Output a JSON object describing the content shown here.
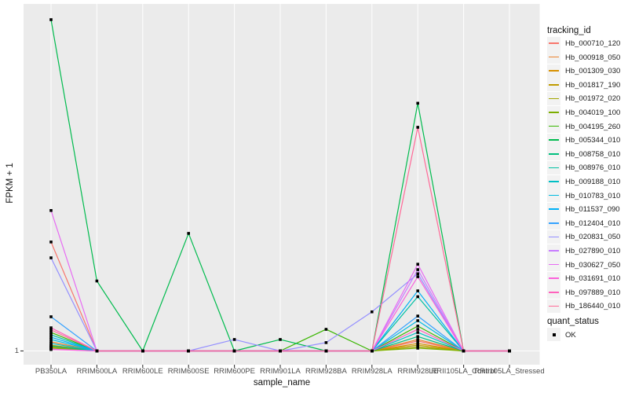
{
  "figure": {
    "background": "#FFFFFF",
    "panel_bg": "#EBEBEB",
    "gridline_color": "#FFFFFF",
    "tick_color": "#333333",
    "axis_text_color": "#4D4D4D",
    "point_color": "#000000"
  },
  "axes": {
    "x_title": "sample_name",
    "y_title": "FPKM + 1",
    "y_tick_label": "1"
  },
  "legend": {
    "tracking_title": "tracking_id",
    "quant_title": "quant_status",
    "quant_ok_label": "OK",
    "key_bg": "#F2F2F2",
    "marker": "black-square"
  },
  "chart_data": {
    "type": "line",
    "title": "",
    "xlabel": "sample_name",
    "ylabel": "FPKM + 1",
    "yscale": "log10",
    "y_ticks_labeled": [
      1
    ],
    "ylim_approx": [
      1,
      1400
    ],
    "grid": "white major gridlines on gray panel",
    "legend_position": "right",
    "point_marker": "small black square (quant_status = OK) at every data point",
    "categories": [
      "PB350LA",
      "RRIM600LA",
      "RRIM600LE",
      "RRIM600SE",
      "RRIM600PE",
      "RRIM901LA",
      "RRIM928BA",
      "RRIM928LA",
      "RRIM928LE",
      "RRII105LA_Control",
      "RRII105LA_Stressed"
    ],
    "values_unit": "FPKM + 1 (estimated from log axis; baseline = 1)",
    "series": [
      {
        "name": "Hb_000710_120",
        "color": "#F8766D",
        "values": [
          9.7,
          1,
          1,
          1,
          1,
          1,
          1,
          1,
          1.23,
          1,
          1
        ]
      },
      {
        "name": "Hb_000918_050",
        "color": "#EA8331",
        "values": [
          1.21,
          1,
          1,
          1,
          1,
          1,
          1,
          1,
          1.27,
          1,
          1
        ]
      },
      {
        "name": "Hb_001309_030",
        "color": "#D89000",
        "values": [
          1.13,
          1,
          1,
          1,
          1,
          1,
          1,
          1,
          1.17,
          1,
          1
        ]
      },
      {
        "name": "Hb_001817_190",
        "color": "#C09B00",
        "values": [
          1.09,
          1,
          1,
          1,
          1,
          1,
          1,
          1,
          1.13,
          1,
          1
        ]
      },
      {
        "name": "Hb_001972_020",
        "color": "#A3A500",
        "values": [
          1.08,
          1,
          1,
          1,
          1,
          1,
          1,
          1,
          1.09,
          1,
          1
        ]
      },
      {
        "name": "Hb_004019_100",
        "color": "#7CAE00",
        "values": [
          1.06,
          1,
          1,
          1,
          1,
          1,
          1,
          1,
          1.06,
          1,
          1
        ]
      },
      {
        "name": "Hb_004195_260",
        "color": "#39B600",
        "values": [
          1.47,
          1,
          1,
          1,
          1,
          1,
          1.57,
          1,
          1.68,
          1,
          1
        ]
      },
      {
        "name": "Hb_005344_010",
        "color": "#00BB4E",
        "values": [
          1000,
          4.3,
          1,
          11.6,
          1,
          1.27,
          1,
          1,
          175,
          1,
          1
        ]
      },
      {
        "name": "Hb_008758_010",
        "color": "#00BF7D",
        "values": [
          1.11,
          1,
          1,
          1,
          1,
          1,
          1,
          1,
          1.35,
          1,
          1
        ]
      },
      {
        "name": "Hb_008976_010",
        "color": "#00C1A3",
        "values": [
          1.4,
          1,
          1,
          1,
          1,
          1,
          1,
          1,
          3.1,
          1,
          1
        ]
      },
      {
        "name": "Hb_009188_010",
        "color": "#00BFC4",
        "values": [
          1.17,
          1,
          1,
          1,
          1,
          1,
          1,
          1,
          1.47,
          1,
          1
        ]
      },
      {
        "name": "Hb_010783_010",
        "color": "#00BAE0",
        "values": [
          1.27,
          1,
          1,
          1,
          1,
          1,
          1,
          1,
          1.88,
          1,
          1
        ]
      },
      {
        "name": "Hb_011537_090",
        "color": "#00B0F6",
        "values": [
          1.33,
          1,
          1,
          1,
          1,
          1,
          1,
          1,
          3.5,
          1,
          1
        ]
      },
      {
        "name": "Hb_012404_010",
        "color": "#35A2FF",
        "values": [
          2.04,
          1,
          1,
          1,
          1,
          1,
          1,
          1,
          2.07,
          1,
          1
        ]
      },
      {
        "name": "Hb_020831_050",
        "color": "#9590FF",
        "values": [
          6.97,
          1,
          1,
          1,
          1.27,
          1,
          1.19,
          2.26,
          5.0,
          1,
          1
        ]
      },
      {
        "name": "Hb_027890_010",
        "color": "#C77CFF",
        "values": [
          1.04,
          1,
          1,
          1,
          1,
          1,
          1,
          1,
          5.45,
          1,
          1
        ]
      },
      {
        "name": "Hb_030627_050",
        "color": "#E76BF3",
        "values": [
          18.7,
          1,
          1,
          1,
          1,
          1,
          1,
          1,
          6.1,
          1,
          1
        ]
      },
      {
        "name": "Hb_031691_010",
        "color": "#FA62DB",
        "values": [
          1.03,
          1,
          1,
          1,
          1,
          1,
          1,
          1,
          4.7,
          1,
          1
        ]
      },
      {
        "name": "Hb_097889_010",
        "color": "#FF62BC",
        "values": [
          1.62,
          1,
          1,
          1,
          1,
          1,
          1,
          1,
          1.57,
          1,
          1
        ]
      },
      {
        "name": "Hb_186440_010",
        "color": "#FF6A98",
        "values": [
          1.55,
          1,
          1,
          1,
          1,
          1,
          1,
          1,
          106,
          1,
          1
        ]
      }
    ]
  }
}
